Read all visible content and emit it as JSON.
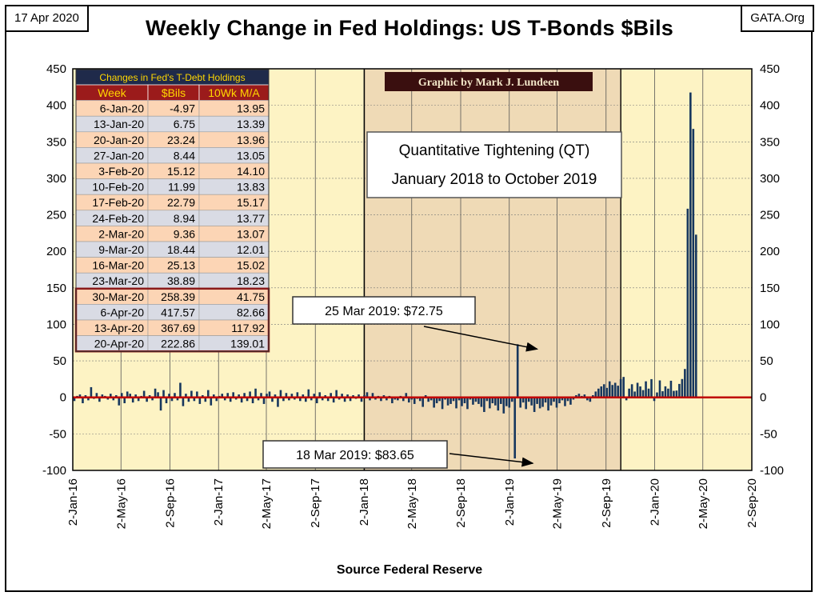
{
  "header": {
    "date": "17 Apr 2020",
    "source": "GATA.Org",
    "title": "Weekly Change in Fed Holdings: US T-Bonds $Bils"
  },
  "footer": {
    "source_label": "Source Federal Reserve"
  },
  "colors": {
    "plot_bg": "#fdf3c4",
    "qt_band": "#efdab6",
    "bar": "#17375e",
    "zero_line": "#c00000",
    "table_header_bg": "#1f2a4a",
    "table_header_text": "#ffd700",
    "table_colhead_bg": "#9b1b1b",
    "table_row_peach": "#fcd5b5",
    "table_row_gray": "#d9dbe4",
    "credit_bg": "#3a0f0f",
    "credit_text": "#f2e6c8"
  },
  "chart_data": {
    "type": "bar",
    "title": "Weekly Change in Fed Holdings: US T-Bonds $Bils",
    "xlabel": "",
    "ylabel": "",
    "ylim": [
      -100,
      450
    ],
    "y_ticks": [
      "450",
      "400",
      "350",
      "300",
      "250",
      "200",
      "150",
      "100",
      "50",
      "0",
      "-50",
      "-100"
    ],
    "x_ticks": [
      "2-Jan-16",
      "2-May-16",
      "2-Sep-16",
      "2-Jan-17",
      "2-May-17",
      "2-Sep-17",
      "2-Jan-18",
      "2-May-18",
      "2-Sep-18",
      "2-Jan-19",
      "2-May-19",
      "2-Sep-19",
      "2-Jan-20",
      "2-May-20",
      "2-Sep-20"
    ],
    "x_range": [
      "2016-01-02",
      "2020-09-02"
    ],
    "qt_period": [
      "2018-01-03",
      "2019-10-09"
    ],
    "grid": true,
    "credit": "Graphic by Mark J. Lundeen",
    "annotations": [
      {
        "text_lines": [
          "Quantitative Tightening (QT)",
          "January 2018 to October 2019"
        ]
      },
      {
        "text": "25 Mar 2019: $72.75",
        "date": "2019-03-25",
        "value": 72.75
      },
      {
        "text": "18 Mar 2019: $83.65",
        "date": "2019-03-18",
        "value": -83.65
      }
    ],
    "series": [
      {
        "start_date": "2016-01-06",
        "week_interval_days": 7,
        "values": [
          -5,
          2,
          4,
          -8,
          3,
          -4,
          14,
          -2,
          6,
          -6,
          4,
          2,
          -3,
          5,
          -4,
          3,
          -11,
          6,
          -8,
          8,
          5,
          -7,
          4,
          -5,
          2,
          9,
          -6,
          3,
          -4,
          12,
          7,
          -18,
          10,
          -8,
          5,
          -5,
          6,
          -4,
          20,
          -12,
          5,
          -6,
          9,
          -5,
          8,
          -9,
          3,
          -6,
          10,
          -11,
          4,
          -5,
          2,
          5,
          -4,
          6,
          -6,
          7,
          -3,
          4,
          -7,
          6,
          -5,
          8,
          -8,
          12,
          -4,
          6,
          -9,
          5,
          8,
          -6,
          4,
          -13,
          10,
          -5,
          6,
          -4,
          5,
          -3,
          7,
          -5,
          4,
          -6,
          11,
          -4,
          5,
          -8,
          7,
          -4,
          3,
          -5,
          6,
          -7,
          10,
          -3,
          5,
          -6,
          4,
          -5,
          3,
          -2,
          4,
          -6,
          3,
          7,
          -4,
          6,
          -3,
          2,
          -5,
          3,
          -4,
          2,
          -8,
          -3,
          -4,
          2,
          -5,
          6,
          -7,
          -3,
          -9,
          -2,
          -5,
          -13,
          3,
          -6,
          -4,
          -14,
          -8,
          -5,
          -16,
          -3,
          -11,
          -9,
          -5,
          -15,
          -4,
          -12,
          -8,
          -16,
          -3,
          -10,
          -6,
          -9,
          -13,
          -20,
          -5,
          -15,
          -8,
          -11,
          -18,
          -9,
          -22,
          -12,
          -14,
          -6,
          -83.65,
          72.75,
          -14,
          -7,
          -16,
          -6,
          -11,
          -20,
          -9,
          -15,
          -13,
          -7,
          -18,
          -11,
          -6,
          -14,
          -8,
          -4,
          -12,
          -5,
          -10,
          -3,
          3,
          5,
          2,
          4,
          -4,
          -6,
          3,
          8,
          12,
          15,
          18,
          13,
          22,
          17,
          20,
          16,
          25,
          28,
          -4,
          12,
          18,
          8,
          20,
          15,
          10,
          22,
          12,
          25,
          -4.97,
          6.75,
          23.24,
          8.44,
          15.12,
          11.99,
          22.79,
          8.94,
          9.36,
          18.44,
          25.13,
          38.89,
          258.39,
          417.57,
          367.69,
          222.86
        ]
      }
    ],
    "table": {
      "title": "Changes in Fed's T-Debt Holdings",
      "columns": [
        "Week",
        "$Bils",
        "10Wk M/A"
      ],
      "rows": [
        [
          "6-Jan-20",
          "-4.97",
          "13.95"
        ],
        [
          "13-Jan-20",
          "6.75",
          "13.39"
        ],
        [
          "20-Jan-20",
          "23.24",
          "13.96"
        ],
        [
          "27-Jan-20",
          "8.44",
          "13.05"
        ],
        [
          "3-Feb-20",
          "15.12",
          "14.10"
        ],
        [
          "10-Feb-20",
          "11.99",
          "13.83"
        ],
        [
          "17-Feb-20",
          "22.79",
          "15.17"
        ],
        [
          "24-Feb-20",
          "8.94",
          "13.77"
        ],
        [
          "2-Mar-20",
          "9.36",
          "13.07"
        ],
        [
          "9-Mar-20",
          "18.44",
          "12.01"
        ],
        [
          "16-Mar-20",
          "25.13",
          "15.02"
        ],
        [
          "23-Mar-20",
          "38.89",
          "18.23"
        ],
        [
          "30-Mar-20",
          "258.39",
          "41.75"
        ],
        [
          "6-Apr-20",
          "417.57",
          "82.66"
        ],
        [
          "13-Apr-20",
          "367.69",
          "117.92"
        ],
        [
          "20-Apr-20",
          "222.86",
          "139.01"
        ]
      ],
      "highlight_from_row": 12
    }
  }
}
